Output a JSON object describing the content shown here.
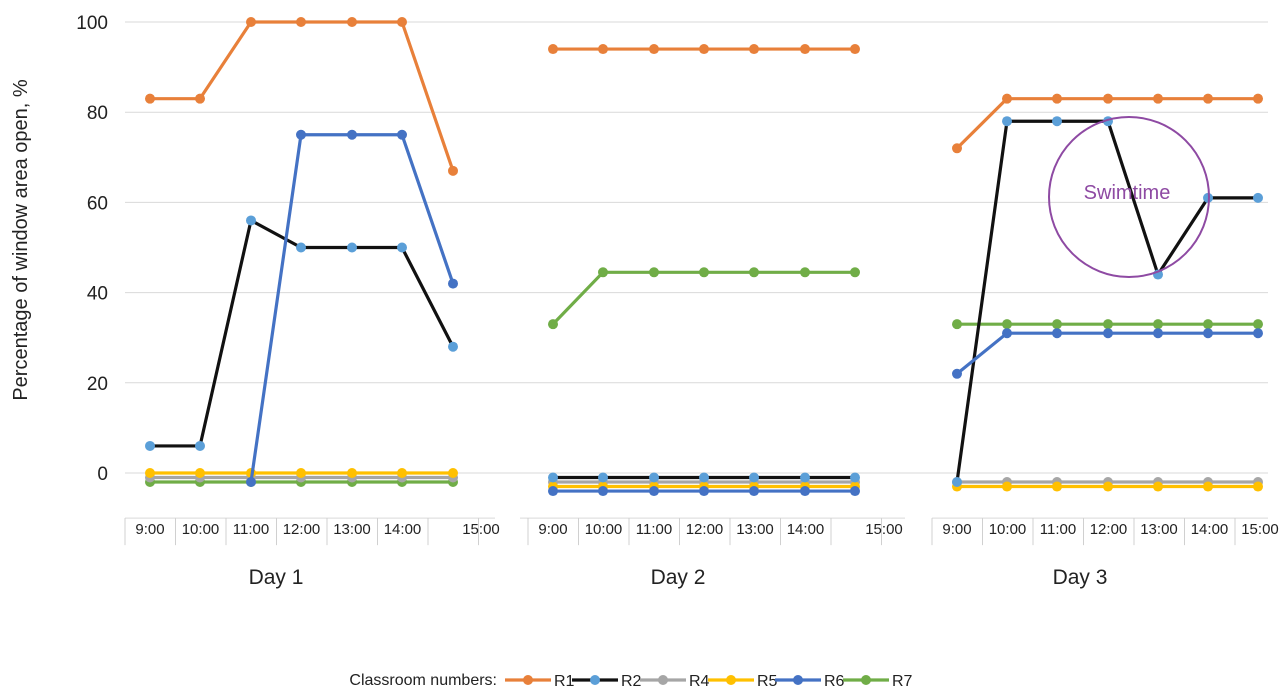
{
  "chart_data": {
    "type": "line",
    "ylabel": "Percentage of window area open, %",
    "ylim": [
      -10,
      100
    ],
    "yticks": [
      0,
      20,
      40,
      60,
      80,
      100
    ],
    "grid": true,
    "x_ticks": [
      "9:00",
      "10:00",
      "11:00",
      "12:00",
      "13:00",
      "14:00",
      "15:00"
    ],
    "legend_title": "Classroom numbers:",
    "legend_placement": "bottom",
    "annotation": "Swimtime",
    "series_styles": [
      {
        "name": "R1",
        "line": "#e8803a",
        "marker": "#e8803a"
      },
      {
        "name": "R2",
        "line": "#111111",
        "marker": "#5b9fd8"
      },
      {
        "name": "R4",
        "line": "#a6a6a6",
        "marker": "#a6a6a6"
      },
      {
        "name": "R5",
        "line": "#ffc000",
        "marker": "#ffc000"
      },
      {
        "name": "R6",
        "line": "#4472c4",
        "marker": "#4472c4"
      },
      {
        "name": "R7",
        "line": "#70ad47",
        "marker": "#70ad47"
      }
    ],
    "panels": [
      {
        "label": "Day 1",
        "series": [
          {
            "name": "R1",
            "points": [
              [
                9.0,
                83
              ],
              [
                10.0,
                83
              ],
              [
                11.0,
                100
              ],
              [
                12.0,
                100
              ],
              [
                13.0,
                100
              ],
              [
                14.0,
                100
              ],
              [
                15.0,
                67
              ]
            ]
          },
          {
            "name": "R2",
            "points": [
              [
                9.0,
                6
              ],
              [
                10.0,
                6
              ],
              [
                11.0,
                56
              ],
              [
                12.0,
                50
              ],
              [
                13.0,
                50
              ],
              [
                14.0,
                50
              ],
              [
                15.0,
                28
              ]
            ]
          },
          {
            "name": "R4",
            "points": [
              [
                9.0,
                -1
              ],
              [
                10.0,
                -1
              ],
              [
                11.0,
                -1
              ],
              [
                12.0,
                -1
              ],
              [
                13.0,
                -1
              ],
              [
                14.0,
                -1
              ],
              [
                15.0,
                -1
              ]
            ]
          },
          {
            "name": "R5",
            "points": [
              [
                9.0,
                0
              ],
              [
                10.0,
                0
              ],
              [
                11.0,
                0
              ],
              [
                12.0,
                0
              ],
              [
                13.0,
                0
              ],
              [
                14.0,
                0
              ],
              [
                15.0,
                0
              ]
            ]
          },
          {
            "name": "R6",
            "points": [
              [
                11.0,
                -2
              ],
              [
                12.0,
                75
              ],
              [
                13.0,
                75
              ],
              [
                14.0,
                75
              ],
              [
                15.0,
                42
              ]
            ]
          },
          {
            "name": "R7",
            "points": [
              [
                9.0,
                -2
              ],
              [
                10.0,
                -2
              ],
              [
                11.0,
                -2
              ],
              [
                12.0,
                -2
              ],
              [
                13.0,
                -2
              ],
              [
                14.0,
                -2
              ],
              [
                15.0,
                -2
              ]
            ]
          }
        ]
      },
      {
        "label": "Day 2",
        "series": [
          {
            "name": "R1",
            "points": [
              [
                9.0,
                94
              ],
              [
                10.0,
                94
              ],
              [
                11.0,
                94
              ],
              [
                12.0,
                94
              ],
              [
                13.0,
                94
              ],
              [
                14.0,
                94
              ],
              [
                15.0,
                94
              ]
            ]
          },
          {
            "name": "R2",
            "points": [
              [
                9.0,
                -1
              ],
              [
                10.0,
                -1
              ],
              [
                11.0,
                -1
              ],
              [
                12.0,
                -1
              ],
              [
                13.0,
                -1
              ],
              [
                14.0,
                -1
              ],
              [
                15.0,
                -1
              ]
            ]
          },
          {
            "name": "R4",
            "points": [
              [
                9.0,
                -2
              ],
              [
                10.0,
                -2
              ],
              [
                11.0,
                -2
              ],
              [
                12.0,
                -2
              ],
              [
                13.0,
                -2
              ],
              [
                14.0,
                -2
              ],
              [
                15.0,
                -2
              ]
            ]
          },
          {
            "name": "R5",
            "points": [
              [
                9.0,
                -3
              ],
              [
                10.0,
                -3
              ],
              [
                11.0,
                -3
              ],
              [
                12.0,
                -3
              ],
              [
                13.0,
                -3
              ],
              [
                14.0,
                -3
              ],
              [
                15.0,
                -3
              ]
            ]
          },
          {
            "name": "R6",
            "points": [
              [
                9.0,
                -4
              ],
              [
                10.0,
                -4
              ],
              [
                11.0,
                -4
              ],
              [
                12.0,
                -4
              ],
              [
                13.0,
                -4
              ],
              [
                14.0,
                -4
              ],
              [
                15.0,
                -4
              ]
            ]
          },
          {
            "name": "R7",
            "points": [
              [
                9.0,
                33
              ],
              [
                10.0,
                44.5
              ],
              [
                11.0,
                44.5
              ],
              [
                12.0,
                44.5
              ],
              [
                13.0,
                44.5
              ],
              [
                14.0,
                44.5
              ],
              [
                15.0,
                44.5
              ]
            ]
          }
        ]
      },
      {
        "label": "Day 3",
        "series": [
          {
            "name": "R1",
            "points": [
              [
                9.0,
                72
              ],
              [
                10.0,
                83
              ],
              [
                11.0,
                83
              ],
              [
                12.0,
                83
              ],
              [
                13.0,
                83
              ],
              [
                14.0,
                83
              ],
              [
                15.0,
                83
              ]
            ]
          },
          {
            "name": "R2",
            "points": [
              [
                9.0,
                -2
              ],
              [
                10.0,
                78
              ],
              [
                11.0,
                78
              ],
              [
                12.0,
                78
              ],
              [
                13.0,
                44
              ],
              [
                14.0,
                61
              ],
              [
                15.0,
                61
              ]
            ]
          },
          {
            "name": "R4",
            "points": [
              [
                9.0,
                -2
              ],
              [
                10.0,
                -2
              ],
              [
                11.0,
                -2
              ],
              [
                12.0,
                -2
              ],
              [
                13.0,
                -2
              ],
              [
                14.0,
                -2
              ],
              [
                15.0,
                -2
              ]
            ]
          },
          {
            "name": "R5",
            "points": [
              [
                9.0,
                -3
              ],
              [
                10.0,
                -3
              ],
              [
                11.0,
                -3
              ],
              [
                12.0,
                -3
              ],
              [
                13.0,
                -3
              ],
              [
                14.0,
                -3
              ],
              [
                15.0,
                -3
              ]
            ]
          },
          {
            "name": "R6",
            "points": [
              [
                9.0,
                22
              ],
              [
                10.0,
                31
              ],
              [
                11.0,
                31
              ],
              [
                12.0,
                31
              ],
              [
                13.0,
                31
              ],
              [
                14.0,
                31
              ],
              [
                15.0,
                31
              ]
            ]
          },
          {
            "name": "R7",
            "points": [
              [
                9.0,
                33
              ],
              [
                10.0,
                33
              ],
              [
                11.0,
                33
              ],
              [
                12.0,
                33
              ],
              [
                13.0,
                33
              ],
              [
                14.0,
                33
              ],
              [
                15.0,
                33
              ]
            ]
          }
        ]
      }
    ]
  }
}
